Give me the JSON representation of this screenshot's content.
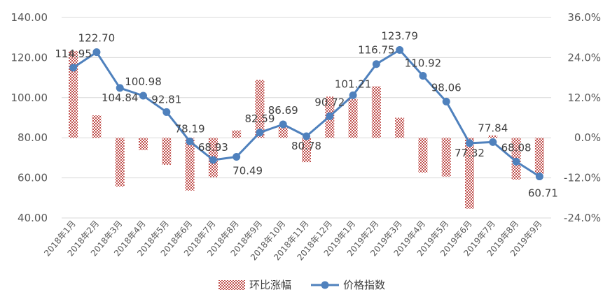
{
  "chart_data": {
    "type": "bar+line",
    "title": "",
    "categories": [
      "2018年1月",
      "2018年2月",
      "2018年3月",
      "2018年4月",
      "2018年5月",
      "2018年6月",
      "2018年7月",
      "2018年8月",
      "2018年9月",
      "2018年10月",
      "2018年11月",
      "2018年12月",
      "2019年1月",
      "2019年2月",
      "2019年3月",
      "2019年4月",
      "2019年5月",
      "2019年6月",
      "2019年7月",
      "2019年8月",
      "2019年9月"
    ],
    "left_axis": {
      "ylim": [
        40,
        140
      ],
      "ticks": [
        "40.00",
        "60.00",
        "80.00",
        "100.00",
        "120.00",
        "140.00"
      ]
    },
    "right_axis": {
      "ylim": [
        -24,
        36
      ],
      "ticks": [
        "-24.0%",
        "-12.0%",
        "0.0%",
        "12.0%",
        "24.0%",
        "36.0%"
      ]
    },
    "grid": true,
    "legend_position": "bottom",
    "series": [
      {
        "name": "环比涨幅",
        "kind": "bar",
        "axis": "right",
        "color": "#c0504d",
        "pattern": "dotted",
        "values": [
          26.0,
          6.7,
          -14.6,
          -3.7,
          -8.1,
          -15.8,
          -11.8,
          2.2,
          17.3,
          3.3,
          -7.3,
          12.3,
          11.6,
          15.4,
          6.0,
          -10.4,
          -11.6,
          -21.2,
          0.7,
          -12.5,
          -10.8
        ]
      },
      {
        "name": "价格指数",
        "kind": "line",
        "axis": "left",
        "color": "#4f81bd",
        "values": [
          114.95,
          122.7,
          104.84,
          100.98,
          92.81,
          78.19,
          68.93,
          70.49,
          82.59,
          86.69,
          80.78,
          90.72,
          101.21,
          116.75,
          123.79,
          110.92,
          98.06,
          77.32,
          77.84,
          68.08,
          60.71
        ],
        "labels": [
          "114.95",
          "122.70",
          "104.84",
          "100.98",
          "92.81",
          "78.19",
          "68.93",
          "70.49",
          "82.59",
          "86.69",
          "80.78",
          "90.72",
          "101.21",
          "116.75",
          "123.79",
          "110.92",
          "98.06",
          "77.32",
          "77.84",
          "68.08",
          "60.71"
        ]
      }
    ]
  }
}
